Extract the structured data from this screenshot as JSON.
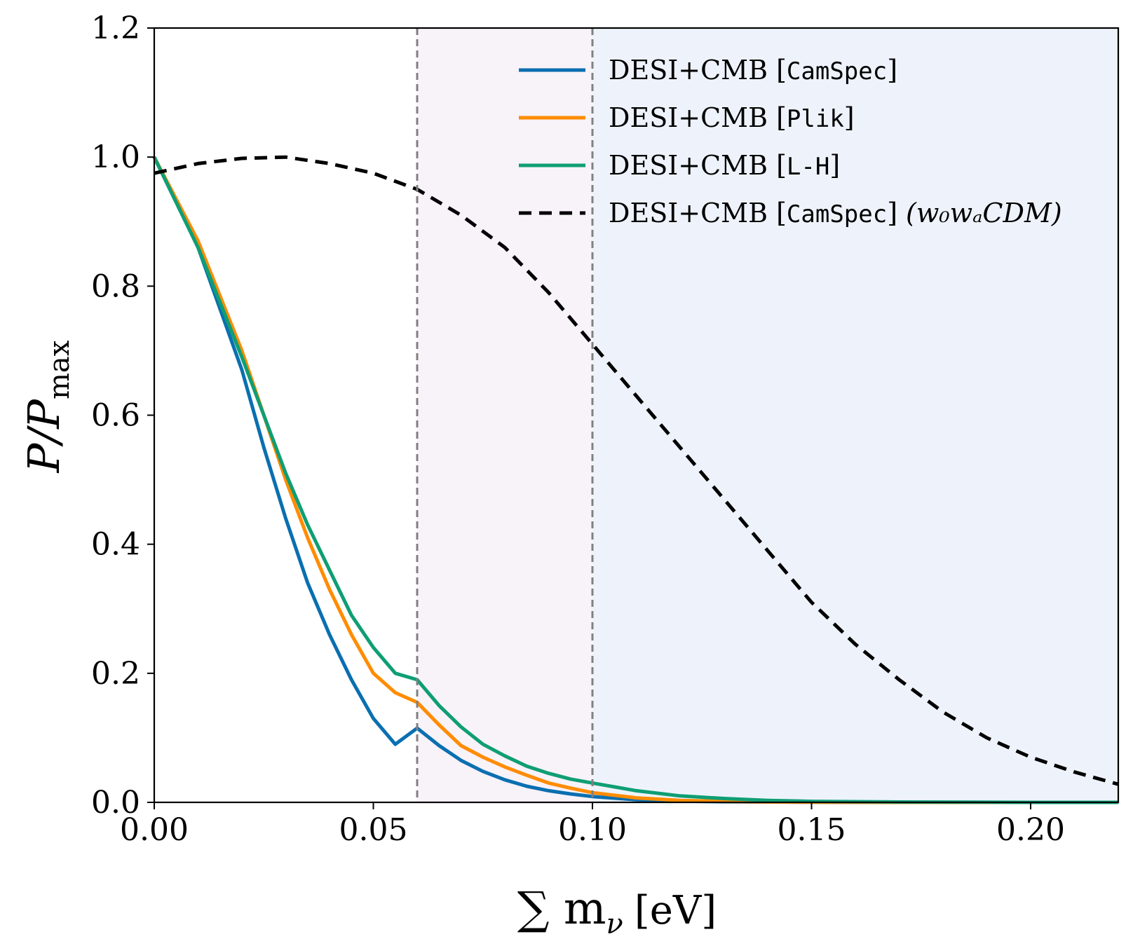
{
  "chart_data": {
    "type": "line",
    "xlabel": "∑ m",
    "xlabel_sub": "ν",
    "xlabel_unit": "[eV]",
    "ylabel": "P/P",
    "ylabel_sub": "max",
    "xlim": [
      0.0,
      0.22
    ],
    "ylim": [
      0.0,
      1.2
    ],
    "x_ticks": [
      "0.00",
      "0.05",
      "0.10",
      "0.15",
      "0.20"
    ],
    "y_ticks": [
      "0.0",
      "0.2",
      "0.4",
      "0.6",
      "0.8",
      "1.0",
      "1.2"
    ],
    "shaded_regions": [
      {
        "x0": 0.06,
        "x1": 0.1,
        "color": "#f8f2f9"
      },
      {
        "x0": 0.1,
        "x1": 0.22,
        "color": "#eef3fb"
      }
    ],
    "vlines": [
      {
        "x": 0.06,
        "color": "#808080"
      },
      {
        "x": 0.1,
        "color": "#808080"
      }
    ],
    "series": [
      {
        "name": "DESI+CMB",
        "tag": "CamSpec",
        "suffix": "",
        "color": "#0a6fb0",
        "dash": "",
        "x": [
          0.0,
          0.01,
          0.02,
          0.025,
          0.03,
          0.035,
          0.04,
          0.045,
          0.05,
          0.055,
          0.06,
          0.065,
          0.07,
          0.075,
          0.08,
          0.085,
          0.09,
          0.095,
          0.1,
          0.11,
          0.12,
          0.13,
          0.14,
          0.15,
          0.17,
          0.2,
          0.22
        ],
        "values": [
          1.0,
          0.86,
          0.67,
          0.55,
          0.44,
          0.34,
          0.26,
          0.19,
          0.13,
          0.09,
          0.115,
          0.088,
          0.065,
          0.048,
          0.035,
          0.025,
          0.018,
          0.013,
          0.009,
          0.004,
          0.002,
          0.001,
          0.0005,
          0.0002,
          0.0,
          0.0,
          0.0
        ]
      },
      {
        "name": "DESI+CMB",
        "tag": "Plik",
        "suffix": "",
        "color": "#ff8c00",
        "dash": "",
        "x": [
          0.0,
          0.01,
          0.02,
          0.025,
          0.03,
          0.035,
          0.04,
          0.045,
          0.05,
          0.055,
          0.06,
          0.065,
          0.07,
          0.075,
          0.08,
          0.085,
          0.09,
          0.095,
          0.1,
          0.11,
          0.12,
          0.13,
          0.14,
          0.15,
          0.17,
          0.2,
          0.22
        ],
        "values": [
          1.0,
          0.87,
          0.7,
          0.6,
          0.5,
          0.41,
          0.33,
          0.26,
          0.2,
          0.17,
          0.155,
          0.12,
          0.088,
          0.07,
          0.055,
          0.042,
          0.03,
          0.022,
          0.015,
          0.007,
          0.003,
          0.0015,
          0.0007,
          0.0003,
          0.0,
          0.0,
          0.0
        ]
      },
      {
        "name": "DESI+CMB",
        "tag": "L-H",
        "suffix": "",
        "color": "#0f9e74",
        "dash": "",
        "x": [
          0.0,
          0.01,
          0.02,
          0.025,
          0.03,
          0.035,
          0.04,
          0.045,
          0.05,
          0.055,
          0.06,
          0.065,
          0.07,
          0.075,
          0.08,
          0.085,
          0.09,
          0.095,
          0.1,
          0.11,
          0.12,
          0.13,
          0.14,
          0.15,
          0.17,
          0.2,
          0.22
        ],
        "values": [
          1.0,
          0.86,
          0.69,
          0.6,
          0.51,
          0.43,
          0.36,
          0.29,
          0.24,
          0.2,
          0.19,
          0.15,
          0.117,
          0.09,
          0.072,
          0.056,
          0.045,
          0.036,
          0.03,
          0.018,
          0.01,
          0.006,
          0.003,
          0.0015,
          0.0005,
          0.0,
          0.0
        ]
      },
      {
        "name": "DESI+CMB",
        "tag": "CamSpec",
        "suffix": "(w₀wₐCDM)",
        "color": "#000000",
        "dash": "18,11",
        "x": [
          0.0,
          0.01,
          0.02,
          0.03,
          0.04,
          0.05,
          0.06,
          0.07,
          0.08,
          0.09,
          0.1,
          0.11,
          0.12,
          0.13,
          0.14,
          0.15,
          0.16,
          0.17,
          0.18,
          0.19,
          0.2,
          0.21,
          0.22
        ],
        "values": [
          0.975,
          0.99,
          0.998,
          1.0,
          0.99,
          0.975,
          0.95,
          0.91,
          0.86,
          0.79,
          0.71,
          0.63,
          0.55,
          0.47,
          0.39,
          0.31,
          0.245,
          0.19,
          0.14,
          0.1,
          0.07,
          0.047,
          0.028
        ]
      }
    ]
  }
}
